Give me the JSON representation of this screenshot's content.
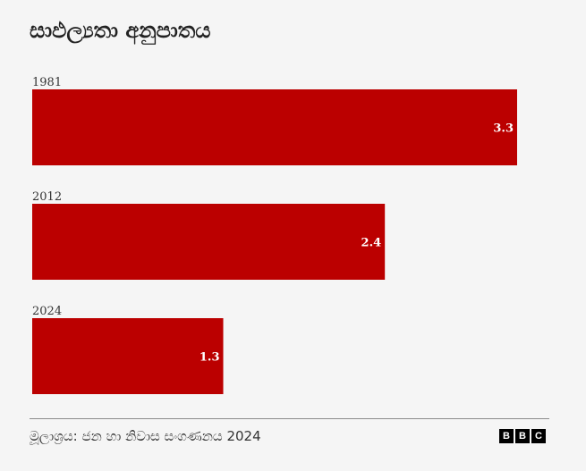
{
  "title": "සාඵල්‍යතා අනුපාතය",
  "source": "මූලාශ්‍රය: ජන හා නිවාස සංගණනය 2024",
  "brand": {
    "letters": [
      "B",
      "B",
      "C"
    ]
  },
  "colors": {
    "bar": "#bb0000",
    "background": "#f5f5f5"
  },
  "chart_data": {
    "type": "bar",
    "orientation": "horizontal",
    "categories": [
      "1981",
      "2012",
      "2024"
    ],
    "values": [
      3.3,
      2.4,
      1.3
    ],
    "value_labels": [
      "3.3",
      "2.4",
      "1.3"
    ],
    "xlim": [
      0,
      3.3
    ],
    "title": "සාඵල්‍යතා අනුපාතය",
    "xlabel": "",
    "ylabel": "",
    "grid": false,
    "legend": "none"
  }
}
